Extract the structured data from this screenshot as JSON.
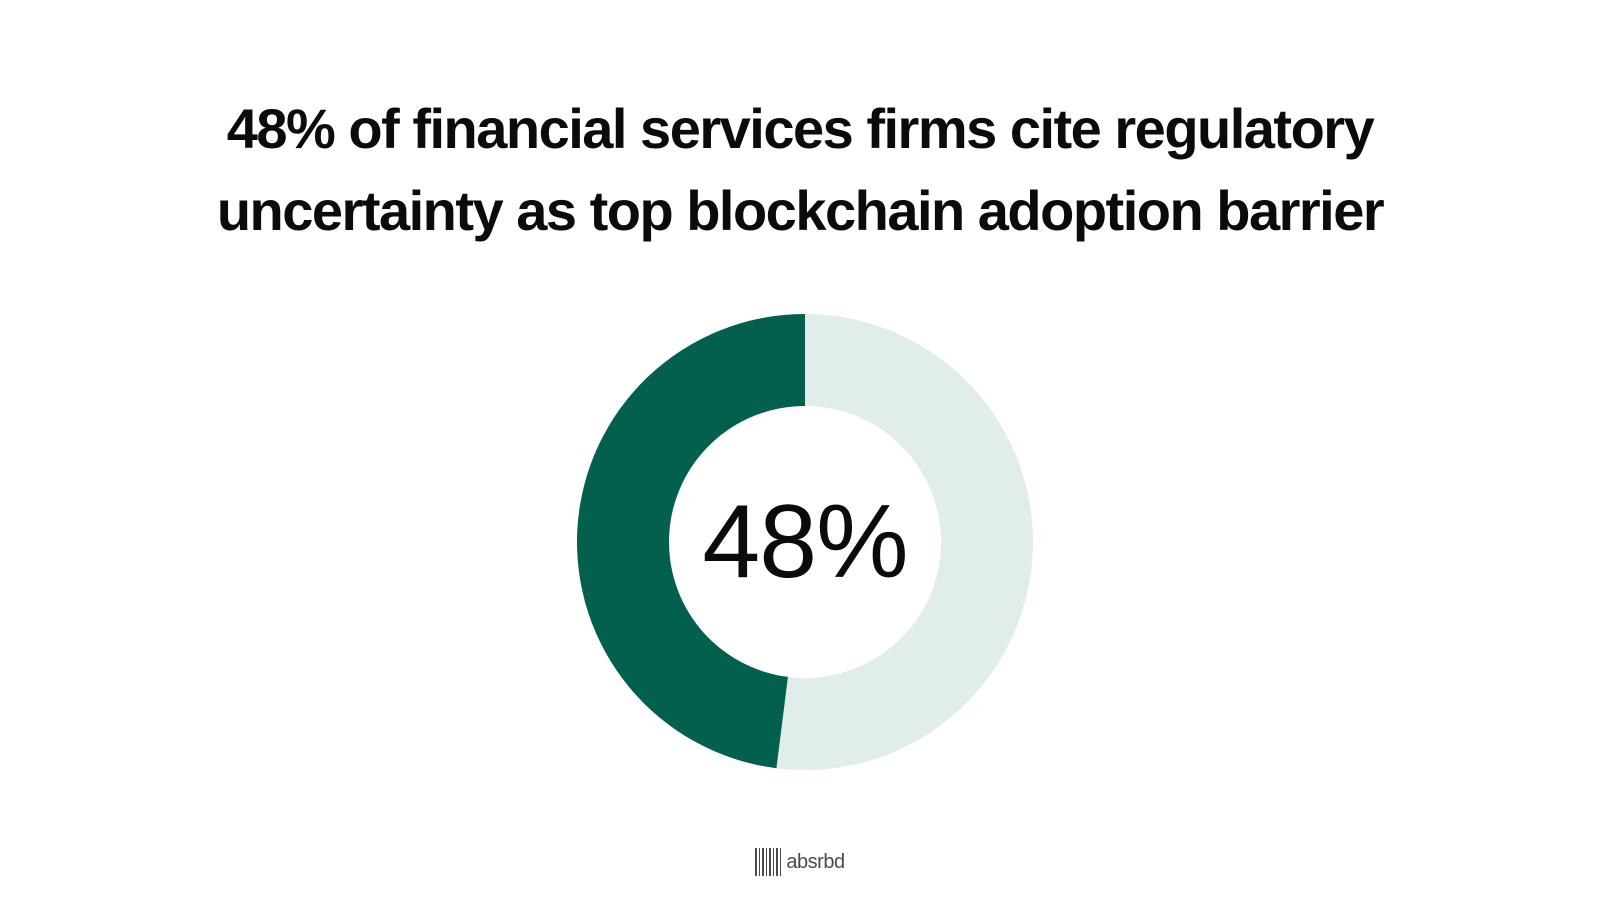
{
  "title_lines": [
    "48% of financial services firms cite regulatory",
    "uncertainty as top blockchain adoption barrier"
  ],
  "chart_data": {
    "type": "pie",
    "variant": "donut",
    "title": "48% of financial services firms cite regulatory uncertainty as top blockchain adoption barrier",
    "center_label": "48%",
    "value": 48,
    "total": 100,
    "colors": {
      "value": "#03604f",
      "remainder": "#e1edea"
    }
  },
  "brand": {
    "name": "absrbd",
    "logo_icon": "barcode-lines-icon"
  }
}
